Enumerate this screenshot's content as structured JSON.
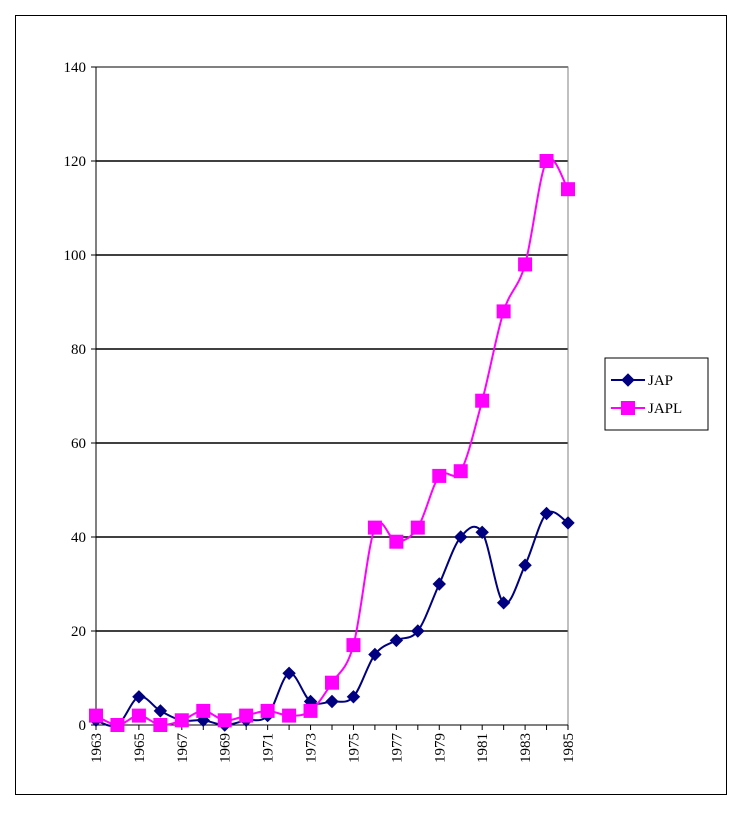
{
  "chart_data": {
    "type": "line",
    "title": "",
    "xlabel": "",
    "ylabel": "",
    "x": [
      1963,
      1964,
      1965,
      1966,
      1967,
      1968,
      1969,
      1970,
      1971,
      1972,
      1973,
      1974,
      1975,
      1976,
      1977,
      1978,
      1979,
      1980,
      1981,
      1982,
      1983,
      1984,
      1985
    ],
    "x_tick_labels": [
      "1963",
      "1965",
      "1967",
      "1969",
      "1971",
      "1973",
      "1975",
      "1977",
      "1979",
      "1981",
      "1983",
      "1985"
    ],
    "ylim": [
      0,
      140
    ],
    "y_ticks": [
      0,
      20,
      40,
      60,
      80,
      100,
      120,
      140
    ],
    "grid": "horizontal major gridlines",
    "legend_position": "right",
    "series": [
      {
        "name": "JAP",
        "color": "#000080",
        "marker": "diamond",
        "values": [
          1,
          0,
          6,
          3,
          1,
          1,
          0,
          1,
          2,
          11,
          5,
          5,
          6,
          15,
          18,
          20,
          30,
          40,
          41,
          26,
          34,
          45,
          43
        ]
      },
      {
        "name": "JAPL",
        "color": "#FF00FF",
        "marker": "square",
        "values": [
          2,
          0,
          2,
          0,
          1,
          3,
          1,
          2,
          3,
          2,
          3,
          9,
          17,
          42,
          39,
          42,
          53,
          54,
          69,
          88,
          98,
          120,
          114
        ]
      }
    ]
  }
}
